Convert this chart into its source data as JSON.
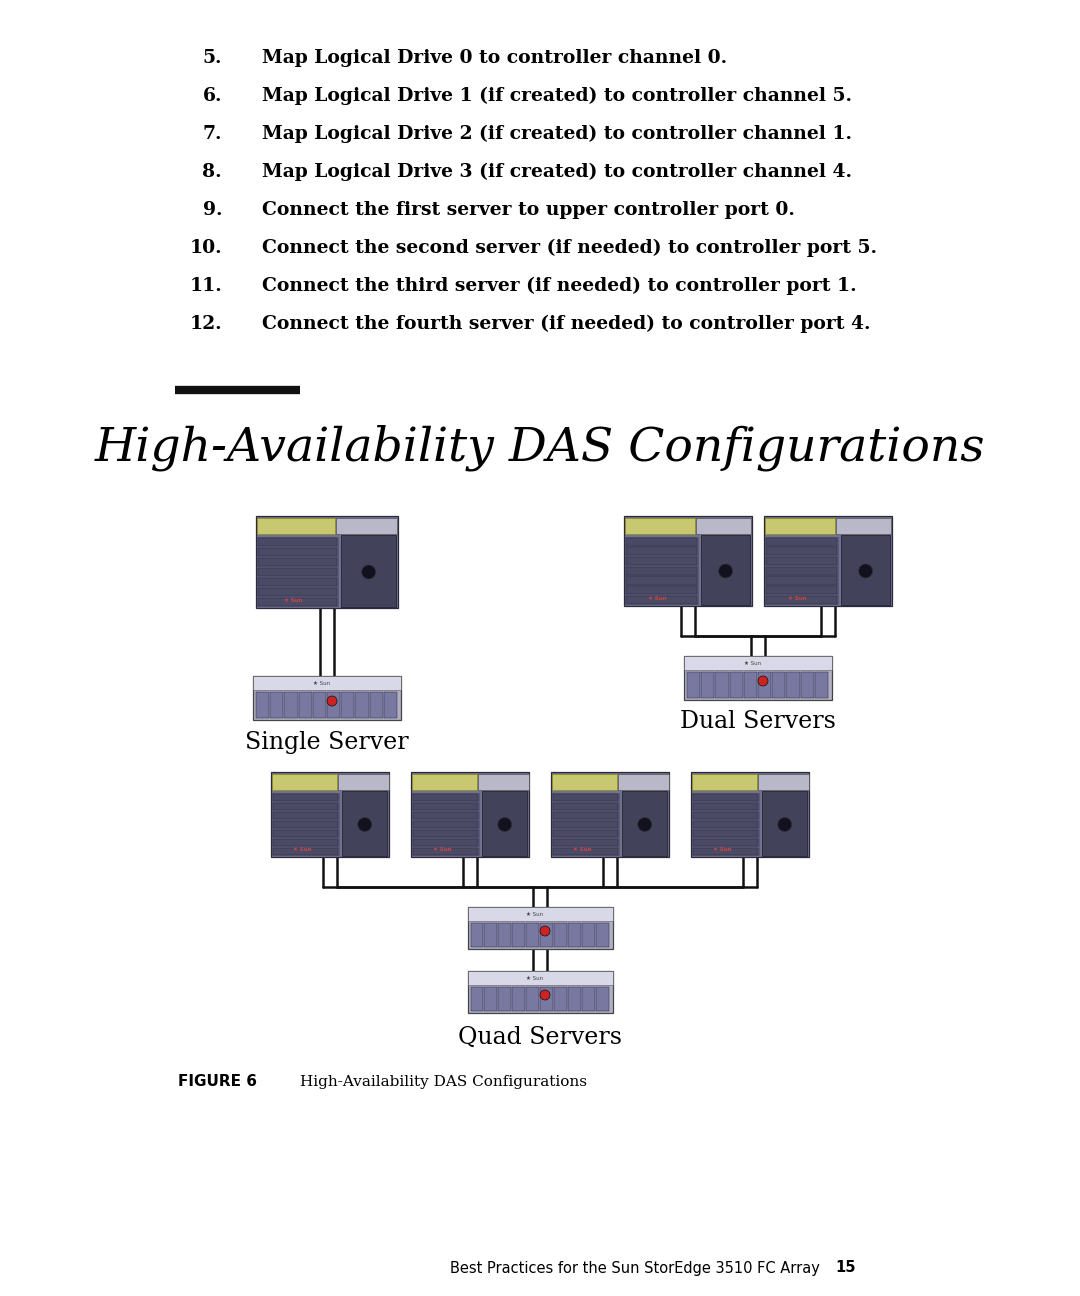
{
  "bg_color": "#ffffff",
  "page_width": 10.8,
  "page_height": 12.96,
  "numbered_items": [
    {
      "num": "5.",
      "text": "Map Logical Drive 0 to controller channel 0."
    },
    {
      "num": "6.",
      "text": "Map Logical Drive 1 (if created) to controller channel 5."
    },
    {
      "num": "7.",
      "text": "Map Logical Drive 2 (if created) to controller channel 1."
    },
    {
      "num": "8.",
      "text": "Map Logical Drive 3 (if created) to controller channel 4."
    },
    {
      "num": "9.",
      "text": "Connect the first server to upper controller port 0."
    },
    {
      "num": "10.",
      "text": "Connect the second server (if needed) to controller port 5."
    },
    {
      "num": "11.",
      "text": "Connect the third server (if needed) to controller port 1."
    },
    {
      "num": "12.",
      "text": "Connect the fourth server (if needed) to controller port 4."
    }
  ],
  "section_title": "High-Availability DAS Configurations",
  "single_label": "Single Server",
  "dual_label": "Dual Servers",
  "quad_label": "Quad Servers",
  "figure_label": "FIGURE 6",
  "figure_caption": "High-Availability DAS Configurations",
  "footer_text": "Best Practices for the Sun StorEdge 3510 FC Array",
  "footer_page": "15",
  "text_color": "#000000",
  "divider_color": "#111111",
  "wire_color": "#111111"
}
